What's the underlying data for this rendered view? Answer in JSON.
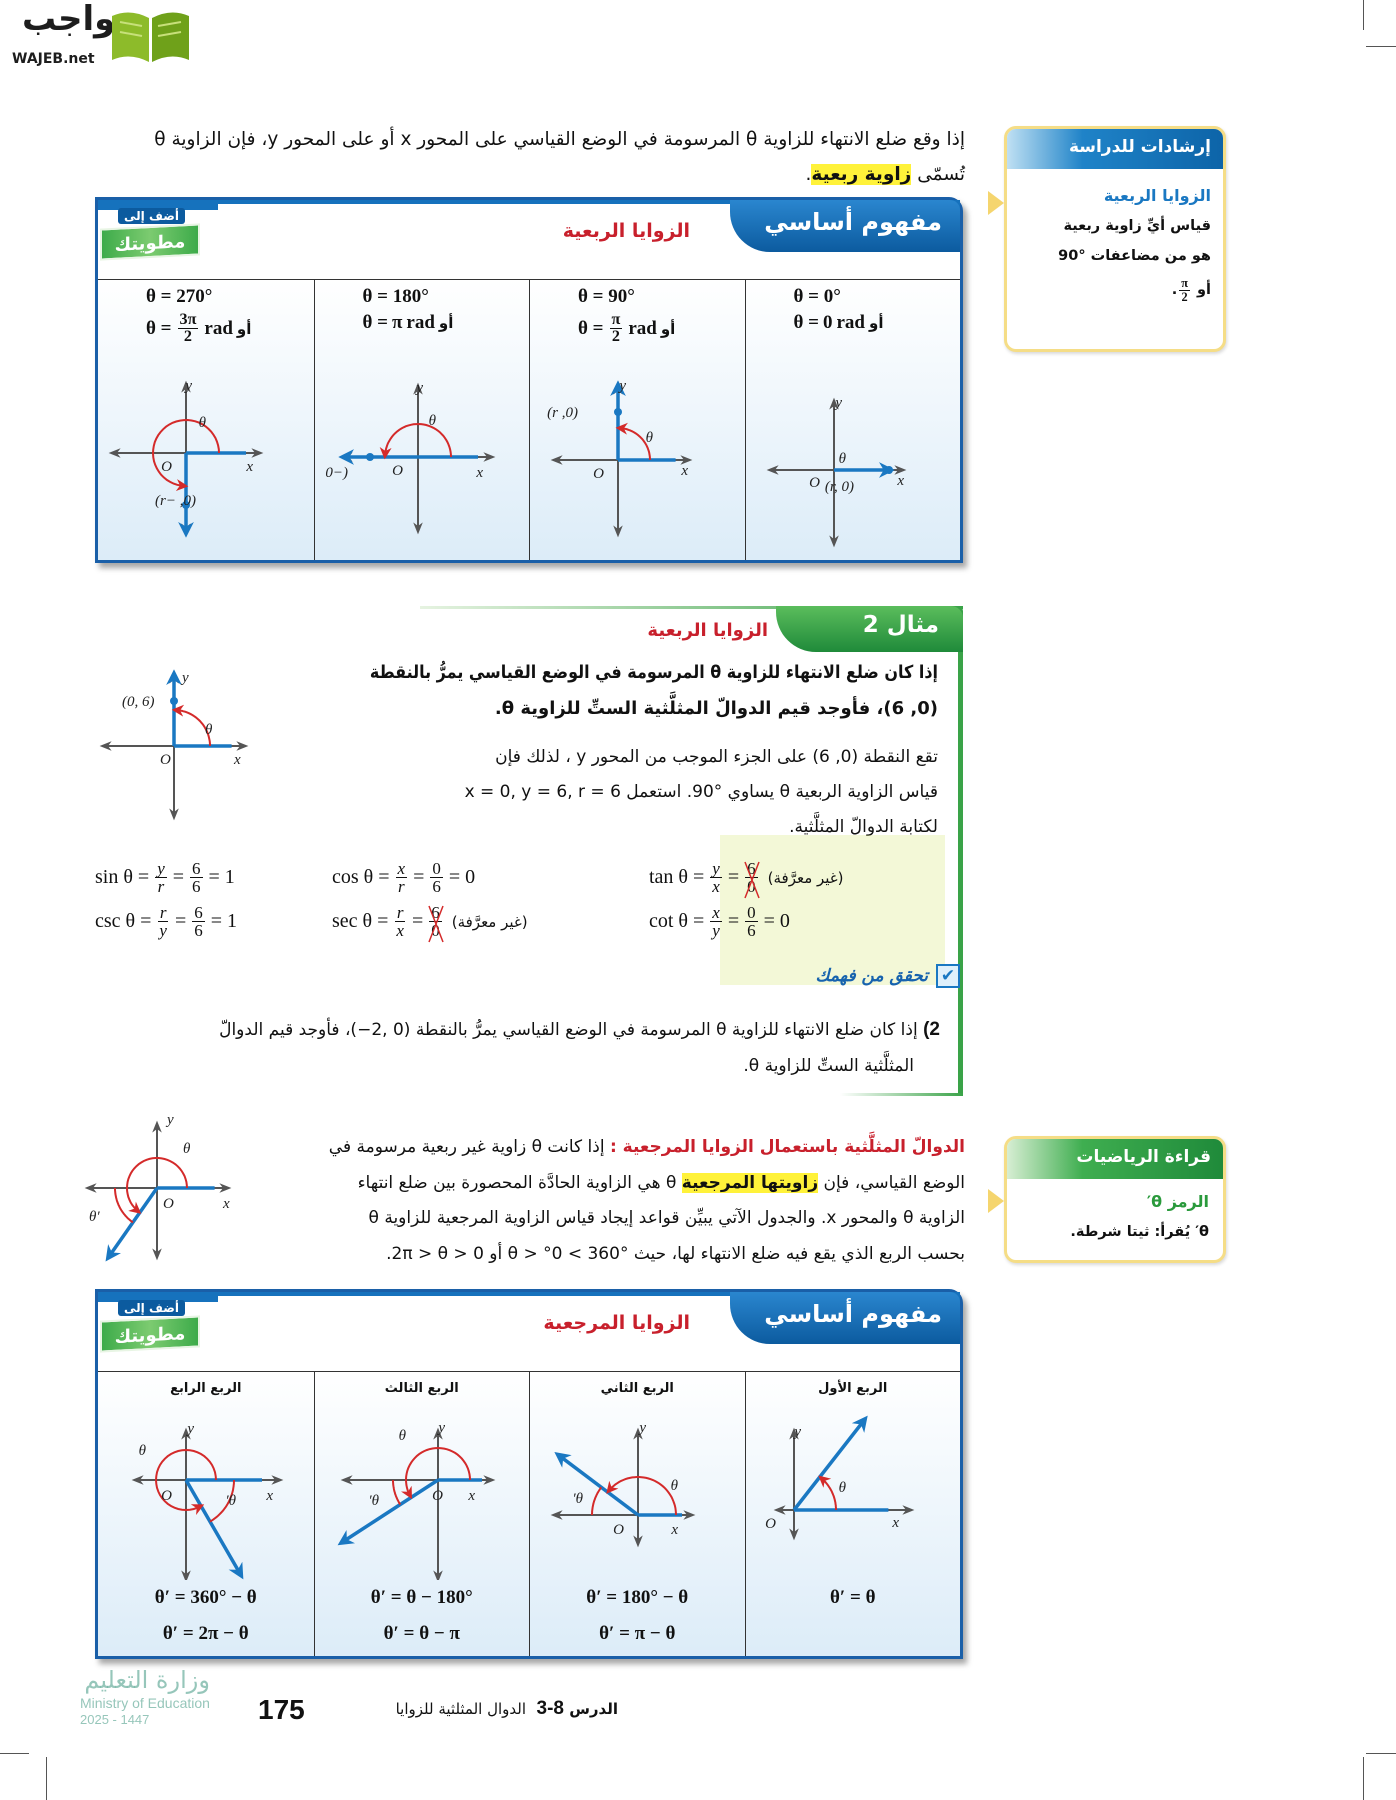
{
  "logo": {
    "arabic": "واجب",
    "latin": "WAJEB.net"
  },
  "watermark": {
    "arabic": "واجب",
    "latin": "WAJEB.net"
  },
  "ministry": {
    "arabic": "وزارة التعليم",
    "english": "Ministry of Education",
    "year": "2025 - 1447"
  },
  "intro": {
    "line1": "إذا وقع ضلع الانتهاء للزاوية θ المرسومة في الوضع القياسي على المحور x أو على المحور y، فإن الزاوية θ",
    "line2_prefix": "تُسمّى ",
    "term": "زاوية ربعية",
    "line2_suffix": "."
  },
  "study_tip": {
    "header": "إرشادات للدراسة",
    "title": "الزوايا الربعية",
    "line1": "قياس أيِّ زاوية ربعية",
    "line2": "هو من مضاعفات °90",
    "line3_or": "أو",
    "line3_num": "π",
    "line3_den": "2",
    "line3_end": "."
  },
  "concept1": {
    "badge": "مفهوم أساسي",
    "title": "الزوايا الربعية",
    "foldable_top": "أضف إلى",
    "foldable_main": "مطويتك",
    "cells": [
      {
        "deg": "θ = 0°",
        "lhs": "θ =",
        "num": "0",
        "den": "",
        "unit": "rad",
        "or": "أو",
        "labels": {
          "x": "x",
          "y": "y",
          "o": "O",
          "theta": "θ",
          "point": "(r, 0)"
        }
      },
      {
        "deg": "θ = 90°",
        "lhs": "θ =",
        "num": "π",
        "den": "2",
        "unit": "rad",
        "or": "أو",
        "labels": {
          "x": "x",
          "y": "y",
          "o": "O",
          "theta": "θ",
          "point": "(0, r)"
        }
      },
      {
        "deg": "θ = 180°",
        "lhs": "θ =",
        "num": "π",
        "den": "",
        "unit": "rad",
        "or": "أو",
        "labels": {
          "x": "x",
          "y": "y",
          "o": "O",
          "theta": "θ",
          "point": "(−r, 0)"
        }
      },
      {
        "deg": "θ = 270°",
        "lhs": "θ =",
        "num": "3π",
        "den": "2",
        "unit": "rad",
        "or": "أو",
        "labels": {
          "x": "x",
          "y": "y",
          "o": "O",
          "theta": "θ",
          "point": "(0, −r)"
        }
      }
    ]
  },
  "example": {
    "tab": "مثال 2",
    "title": "الزوايا الربعية",
    "question_line1": "إذا كان ضلع الانتهاء للزاوية θ المرسومة في الوضع القياسي يمرُّ بالنقطة",
    "question_line2": "(0, 6)، فأوجد قيم الدوالّ المثلَّثية الستِّ للزاوية θ.",
    "solution_line1": "تقع النقطة (0, 6) على الجزء الموجب من المحور y ، لذلك فإن",
    "solution_line2": "قياس الزاوية الربعية θ يساوي °90. استعمل x = 0, y = 6, r = 6",
    "solution_line3": "لكتابة الدوالّ المثلَّثية.",
    "diagram_labels": {
      "x": "x",
      "y": "y",
      "o": "O",
      "theta": "θ",
      "point": "(0, 6)"
    },
    "functions": [
      {
        "name": "sin θ =",
        "n1": "y",
        "d1": "r",
        "n2": "6",
        "d2": "6",
        "result": "= 1",
        "crossed": false,
        "note": ""
      },
      {
        "name": "cos θ =",
        "n1": "x",
        "d1": "r",
        "n2": "0",
        "d2": "6",
        "result": "= 0",
        "crossed": false,
        "note": ""
      },
      {
        "name": "tan θ =",
        "n1": "y",
        "d1": "x",
        "n2": "6",
        "d2": "0",
        "result": "",
        "crossed": true,
        "note": "(غير معرَّفة)"
      },
      {
        "name": "csc θ =",
        "n1": "r",
        "d1": "y",
        "n2": "6",
        "d2": "6",
        "result": "= 1",
        "crossed": false,
        "note": ""
      },
      {
        "name": "sec θ =",
        "n1": "r",
        "d1": "x",
        "n2": "6",
        "d2": "0",
        "result": "",
        "crossed": true,
        "note": "(غير معرَّفة)"
      },
      {
        "name": "cot θ =",
        "n1": "x",
        "d1": "y",
        "n2": "0",
        "d2": "6",
        "result": "= 0",
        "crossed": false,
        "note": ""
      }
    ],
    "check_label": "تحقق من فهمك",
    "exercise_number": "2)",
    "exercise_line1": "إذا كان ضلع الانتهاء للزاوية θ المرسومة في الوضع القياسي يمرُّ بالنقطة (0 ,2−)، فأوجد قيم الدوالّ",
    "exercise_line2": "المثلَّثية الستِّ للزاوية θ."
  },
  "reference": {
    "heading": "الدوالّ المثلَّثية باستعمال الزوايا المرجعية :",
    "line1": "إذا كانت θ زاوية غير ربعية مرسومة في",
    "line2_prefix": "الوضع القياسي، فإن ",
    "term": "زاويتها المرجعية",
    "line2_suffix": " θ هي الزاوية الحادَّة المحصورة بين ضلع انتهاء",
    "line3": "الزاوية θ والمحور x. والجدول الآتي يبيِّن قواعد إيجاد قياس الزاوية المرجعية للزاوية θ",
    "line4": "بحسب الربع الذي يقع فيه ضلع الانتهاء لها، حيث °360 > θ > °0 أو 2π > θ > 0.",
    "diagram_labels": {
      "x": "x",
      "y": "y",
      "o": "O",
      "theta": "θ",
      "theta_prime": "θ′"
    }
  },
  "reading_math": {
    "header": "قراءة الرياضيات",
    "title": "الرمز θ′",
    "text": "θ′ يُقرأ: ثيتا شرطة."
  },
  "concept2": {
    "badge": "مفهوم أساسي",
    "title": "الزوايا المرجعية",
    "foldable_top": "أضف إلى",
    "foldable_main": "مطويتك",
    "cells": [
      {
        "header": "الربع الأول",
        "formulas": [
          "θ′ = θ"
        ],
        "labels": {
          "x": "x",
          "y": "y",
          "o": "O",
          "theta": "θ",
          "theta_prime": ""
        }
      },
      {
        "header": "الربع الثاني",
        "formulas": [
          "θ′ = 180° − θ",
          "θ′ = π − θ"
        ],
        "labels": {
          "x": "x",
          "y": "y",
          "o": "O",
          "theta": "θ",
          "theta_prime": "θ′"
        }
      },
      {
        "header": "الربع الثالث",
        "formulas": [
          "θ′ = θ − 180°",
          "θ′ = θ − π"
        ],
        "labels": {
          "x": "x",
          "y": "y",
          "o": "O",
          "theta": "θ",
          "theta_prime": "θ′"
        }
      },
      {
        "header": "الربع الرابع",
        "formulas": [
          "θ′ = 360° − θ",
          "θ′ = 2π − θ"
        ],
        "labels": {
          "x": "x",
          "y": "y",
          "o": "O",
          "theta": "θ",
          "theta_prime": "θ′"
        }
      }
    ]
  },
  "footer": {
    "lesson_label": "الدرس",
    "lesson_number": "8-3",
    "lesson_title": "الدوال المثلثية للزوايا",
    "page_number": "175"
  },
  "colors": {
    "axis": "#555555",
    "ray": "#1a78c2",
    "arc": "#d42a2a",
    "concept_blue": "#1a5fa8",
    "example_green": "#3aa348",
    "highlight": "#fff23a",
    "title_red": "#c8202c"
  }
}
